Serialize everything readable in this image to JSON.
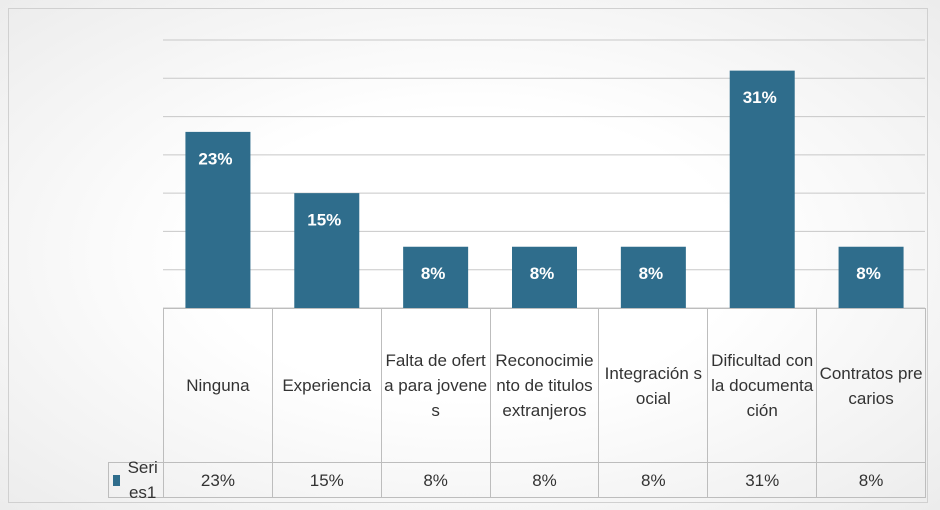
{
  "chart_data": {
    "type": "bar",
    "categories": [
      "Ninguna",
      "Experiencia",
      "Falta de oferta para jovenes",
      "Reconocimiento de titulos extranjeros",
      "Integración social",
      "Dificultad con la documentación",
      "Contratos precarios"
    ],
    "series": [
      {
        "name": "Series1",
        "color": "#2f6d8c",
        "values": [
          23,
          15,
          8,
          8,
          8,
          31,
          8
        ],
        "value_labels": [
          "23%",
          "15%",
          "8%",
          "8%",
          "8%",
          "31%",
          "8%"
        ]
      }
    ],
    "ylim": [
      0,
      35
    ],
    "yticks": [
      0,
      5,
      10,
      15,
      20,
      25,
      30,
      35
    ],
    "grid": true
  }
}
